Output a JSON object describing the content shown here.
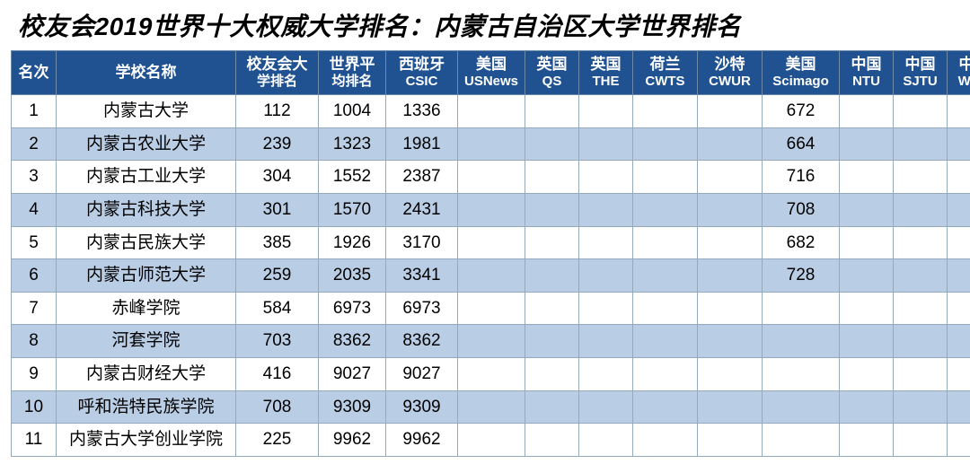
{
  "title": "校友会2019世界十大权威大学排名：内蒙古自治区大学世界排名",
  "colors": {
    "header_bg": "#205291",
    "header_text": "#ffffff",
    "row_odd_bg": "#ffffff",
    "row_even_bg": "#b9cde5",
    "border": "#95a9bd",
    "title_color": "#000000"
  },
  "typography": {
    "title_fontsize": 28,
    "title_weight": 900,
    "header_fontsize": 17,
    "cell_fontsize": 19
  },
  "columns": [
    {
      "top": "名次",
      "bottom": ""
    },
    {
      "top": "学校名称",
      "bottom": ""
    },
    {
      "top": "校友会大",
      "bottom": "学排名"
    },
    {
      "top": "世界平",
      "bottom": "均排名"
    },
    {
      "top": "西班牙",
      "bottom": "CSIC"
    },
    {
      "top": "美国",
      "bottom": "USNews"
    },
    {
      "top": "英国",
      "bottom": "QS"
    },
    {
      "top": "英国",
      "bottom": "THE"
    },
    {
      "top": "荷兰",
      "bottom": "CWTS"
    },
    {
      "top": "沙特",
      "bottom": "CWUR"
    },
    {
      "top": "美国",
      "bottom": "Scimago"
    },
    {
      "top": "中国",
      "bottom": "NTU"
    },
    {
      "top": "中国",
      "bottom": "SJTU"
    },
    {
      "top": "中国",
      "bottom": "WHU"
    }
  ],
  "rows": [
    {
      "rank": "1",
      "name": "内蒙古大学",
      "alumni": "112",
      "avg": "1004",
      "csic": "1336",
      "usnews": "",
      "qs": "",
      "the": "",
      "cwts": "",
      "cwur": "",
      "sci": "672",
      "ntu": "",
      "sjtu": "",
      "whu": ""
    },
    {
      "rank": "2",
      "name": "内蒙古农业大学",
      "alumni": "239",
      "avg": "1323",
      "csic": "1981",
      "usnews": "",
      "qs": "",
      "the": "",
      "cwts": "",
      "cwur": "",
      "sci": "664",
      "ntu": "",
      "sjtu": "",
      "whu": ""
    },
    {
      "rank": "3",
      "name": "内蒙古工业大学",
      "alumni": "304",
      "avg": "1552",
      "csic": "2387",
      "usnews": "",
      "qs": "",
      "the": "",
      "cwts": "",
      "cwur": "",
      "sci": "716",
      "ntu": "",
      "sjtu": "",
      "whu": ""
    },
    {
      "rank": "4",
      "name": "内蒙古科技大学",
      "alumni": "301",
      "avg": "1570",
      "csic": "2431",
      "usnews": "",
      "qs": "",
      "the": "",
      "cwts": "",
      "cwur": "",
      "sci": "708",
      "ntu": "",
      "sjtu": "",
      "whu": ""
    },
    {
      "rank": "5",
      "name": "内蒙古民族大学",
      "alumni": "385",
      "avg": "1926",
      "csic": "3170",
      "usnews": "",
      "qs": "",
      "the": "",
      "cwts": "",
      "cwur": "",
      "sci": "682",
      "ntu": "",
      "sjtu": "",
      "whu": ""
    },
    {
      "rank": "6",
      "name": "内蒙古师范大学",
      "alumni": "259",
      "avg": "2035",
      "csic": "3341",
      "usnews": "",
      "qs": "",
      "the": "",
      "cwts": "",
      "cwur": "",
      "sci": "728",
      "ntu": "",
      "sjtu": "",
      "whu": ""
    },
    {
      "rank": "7",
      "name": "赤峰学院",
      "alumni": "584",
      "avg": "6973",
      "csic": "6973",
      "usnews": "",
      "qs": "",
      "the": "",
      "cwts": "",
      "cwur": "",
      "sci": "",
      "ntu": "",
      "sjtu": "",
      "whu": ""
    },
    {
      "rank": "8",
      "name": "河套学院",
      "alumni": "703",
      "avg": "8362",
      "csic": "8362",
      "usnews": "",
      "qs": "",
      "the": "",
      "cwts": "",
      "cwur": "",
      "sci": "",
      "ntu": "",
      "sjtu": "",
      "whu": ""
    },
    {
      "rank": "9",
      "name": "内蒙古财经大学",
      "alumni": "416",
      "avg": "9027",
      "csic": "9027",
      "usnews": "",
      "qs": "",
      "the": "",
      "cwts": "",
      "cwur": "",
      "sci": "",
      "ntu": "",
      "sjtu": "",
      "whu": ""
    },
    {
      "rank": "10",
      "name": "呼和浩特民族学院",
      "alumni": "708",
      "avg": "9309",
      "csic": "9309",
      "usnews": "",
      "qs": "",
      "the": "",
      "cwts": "",
      "cwur": "",
      "sci": "",
      "ntu": "",
      "sjtu": "",
      "whu": ""
    },
    {
      "rank": "11",
      "name": "内蒙古大学创业学院",
      "alumni": "225",
      "avg": "9962",
      "csic": "9962",
      "usnews": "",
      "qs": "",
      "the": "",
      "cwts": "",
      "cwur": "",
      "sci": "",
      "ntu": "",
      "sjtu": "",
      "whu": ""
    }
  ]
}
